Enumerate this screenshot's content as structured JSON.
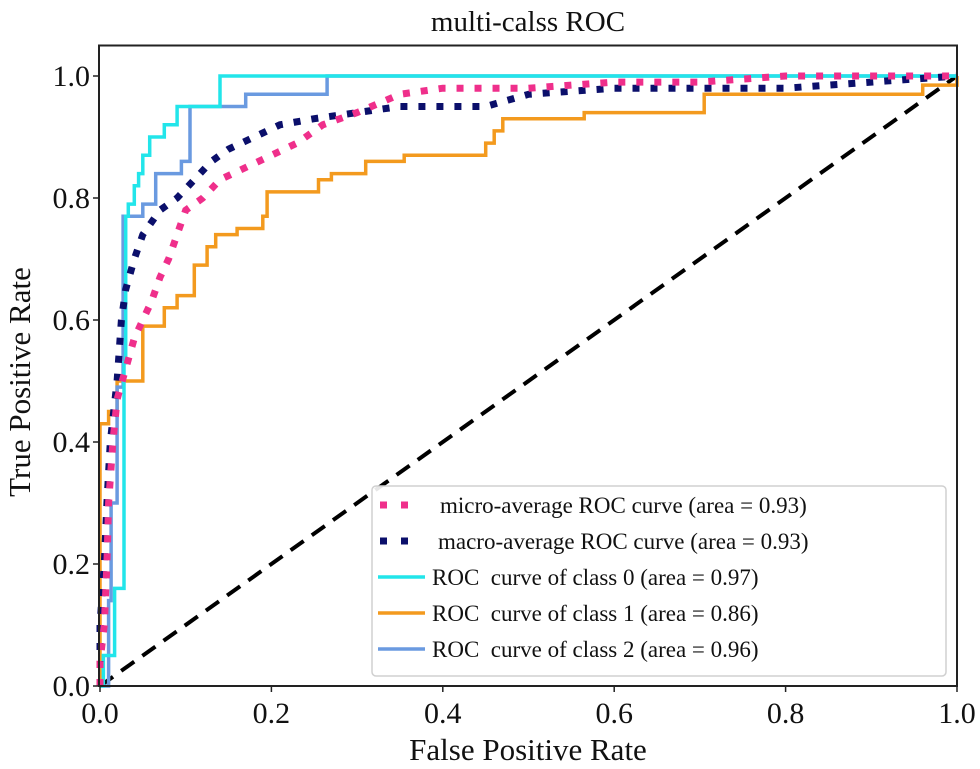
{
  "chart_data": {
    "type": "line",
    "title": "multi-calss ROC",
    "xlabel": "False Positive Rate",
    "ylabel": "True Positive Rate",
    "xlim": [
      0.0,
      1.0
    ],
    "ylim": [
      0.0,
      1.05
    ],
    "xticks": [
      "0.0",
      "0.2",
      "0.4",
      "0.6",
      "0.8",
      "1.0"
    ],
    "yticks": [
      "0.0",
      "0.2",
      "0.4",
      "0.6",
      "0.8",
      "1.0"
    ],
    "grid": false,
    "legend_position": "lower-right",
    "series": [
      {
        "name": "micro-average ROC curve (area = 0.93)",
        "color": "#ef2f8b",
        "style": "dotted",
        "points": [
          [
            0,
            0
          ],
          [
            0,
            0.04
          ],
          [
            0.005,
            0.1
          ],
          [
            0.008,
            0.2
          ],
          [
            0.01,
            0.3
          ],
          [
            0.015,
            0.4
          ],
          [
            0.02,
            0.47
          ],
          [
            0.03,
            0.52
          ],
          [
            0.04,
            0.57
          ],
          [
            0.05,
            0.6
          ],
          [
            0.06,
            0.63
          ],
          [
            0.07,
            0.67
          ],
          [
            0.08,
            0.7
          ],
          [
            0.09,
            0.74
          ],
          [
            0.1,
            0.78
          ],
          [
            0.12,
            0.8
          ],
          [
            0.14,
            0.83
          ],
          [
            0.17,
            0.85
          ],
          [
            0.2,
            0.87
          ],
          [
            0.23,
            0.89
          ],
          [
            0.26,
            0.92
          ],
          [
            0.3,
            0.94
          ],
          [
            0.35,
            0.97
          ],
          [
            0.4,
            0.98
          ],
          [
            0.5,
            0.98
          ],
          [
            0.6,
            0.99
          ],
          [
            0.7,
            0.99
          ],
          [
            0.8,
            1.0
          ],
          [
            0.9,
            1.0
          ],
          [
            1.0,
            1.0
          ]
        ]
      },
      {
        "name": "macro-average ROC curve (area = 0.93)",
        "color": "#0b0f6b",
        "style": "dotted",
        "points": [
          [
            0,
            0
          ],
          [
            0,
            0.1
          ],
          [
            0.005,
            0.2
          ],
          [
            0.008,
            0.3
          ],
          [
            0.012,
            0.4
          ],
          [
            0.02,
            0.5
          ],
          [
            0.025,
            0.6
          ],
          [
            0.03,
            0.65
          ],
          [
            0.04,
            0.7
          ],
          [
            0.05,
            0.74
          ],
          [
            0.07,
            0.78
          ],
          [
            0.09,
            0.8
          ],
          [
            0.11,
            0.83
          ],
          [
            0.13,
            0.86
          ],
          [
            0.15,
            0.88
          ],
          [
            0.18,
            0.9
          ],
          [
            0.21,
            0.92
          ],
          [
            0.25,
            0.93
          ],
          [
            0.3,
            0.94
          ],
          [
            0.35,
            0.95
          ],
          [
            0.4,
            0.95
          ],
          [
            0.45,
            0.95
          ],
          [
            0.5,
            0.97
          ],
          [
            0.6,
            0.98
          ],
          [
            0.7,
            0.98
          ],
          [
            0.8,
            0.98
          ],
          [
            0.9,
            0.99
          ],
          [
            1.0,
            1.0
          ]
        ]
      },
      {
        "name": "ROC  curve of class 0 (area = 0.97)",
        "color": "#22e5ea",
        "style": "solid",
        "points": [
          [
            0,
            0
          ],
          [
            0.004,
            0
          ],
          [
            0.004,
            0.05
          ],
          [
            0.017,
            0.05
          ],
          [
            0.017,
            0.16
          ],
          [
            0.028,
            0.16
          ],
          [
            0.028,
            0.53
          ],
          [
            0.03,
            0.53
          ],
          [
            0.03,
            0.77
          ],
          [
            0.033,
            0.77
          ],
          [
            0.033,
            0.79
          ],
          [
            0.04,
            0.79
          ],
          [
            0.04,
            0.82
          ],
          [
            0.045,
            0.82
          ],
          [
            0.045,
            0.84
          ],
          [
            0.05,
            0.84
          ],
          [
            0.05,
            0.87
          ],
          [
            0.058,
            0.87
          ],
          [
            0.058,
            0.9
          ],
          [
            0.075,
            0.9
          ],
          [
            0.075,
            0.92
          ],
          [
            0.09,
            0.92
          ],
          [
            0.09,
            0.95
          ],
          [
            0.14,
            0.95
          ],
          [
            0.14,
            1.0
          ],
          [
            1.0,
            1.0
          ]
        ]
      },
      {
        "name": "ROC  curve of class 1 (area = 0.86)",
        "color": "#f39a1e",
        "style": "solid",
        "points": [
          [
            0,
            0
          ],
          [
            0,
            0.43
          ],
          [
            0.01,
            0.43
          ],
          [
            0.01,
            0.45
          ],
          [
            0.02,
            0.45
          ],
          [
            0.02,
            0.5
          ],
          [
            0.05,
            0.5
          ],
          [
            0.05,
            0.59
          ],
          [
            0.075,
            0.59
          ],
          [
            0.075,
            0.62
          ],
          [
            0.09,
            0.62
          ],
          [
            0.09,
            0.64
          ],
          [
            0.11,
            0.64
          ],
          [
            0.11,
            0.69
          ],
          [
            0.125,
            0.69
          ],
          [
            0.125,
            0.72
          ],
          [
            0.135,
            0.72
          ],
          [
            0.135,
            0.74
          ],
          [
            0.16,
            0.74
          ],
          [
            0.16,
            0.75
          ],
          [
            0.19,
            0.75
          ],
          [
            0.19,
            0.77
          ],
          [
            0.195,
            0.77
          ],
          [
            0.195,
            0.81
          ],
          [
            0.255,
            0.81
          ],
          [
            0.255,
            0.83
          ],
          [
            0.27,
            0.83
          ],
          [
            0.27,
            0.84
          ],
          [
            0.31,
            0.84
          ],
          [
            0.31,
            0.86
          ],
          [
            0.355,
            0.86
          ],
          [
            0.355,
            0.87
          ],
          [
            0.45,
            0.87
          ],
          [
            0.45,
            0.89
          ],
          [
            0.46,
            0.89
          ],
          [
            0.46,
            0.91
          ],
          [
            0.47,
            0.91
          ],
          [
            0.47,
            0.93
          ],
          [
            0.565,
            0.93
          ],
          [
            0.565,
            0.94
          ],
          [
            0.705,
            0.94
          ],
          [
            0.705,
            0.97
          ],
          [
            0.96,
            0.97
          ],
          [
            0.96,
            0.985
          ],
          [
            1.0,
            0.985
          ],
          [
            1.0,
            1.0
          ]
        ]
      },
      {
        "name": "ROC  curve of class 2 (area = 0.96)",
        "color": "#6a9ae0",
        "style": "solid",
        "points": [
          [
            0,
            0
          ],
          [
            0.01,
            0
          ],
          [
            0.01,
            0.14
          ],
          [
            0.013,
            0.14
          ],
          [
            0.013,
            0.3
          ],
          [
            0.02,
            0.3
          ],
          [
            0.02,
            0.49
          ],
          [
            0.027,
            0.49
          ],
          [
            0.027,
            0.77
          ],
          [
            0.05,
            0.77
          ],
          [
            0.05,
            0.79
          ],
          [
            0.065,
            0.79
          ],
          [
            0.065,
            0.84
          ],
          [
            0.095,
            0.84
          ],
          [
            0.095,
            0.86
          ],
          [
            0.105,
            0.86
          ],
          [
            0.105,
            0.95
          ],
          [
            0.17,
            0.95
          ],
          [
            0.17,
            0.97
          ],
          [
            0.265,
            0.97
          ],
          [
            0.265,
            1.0
          ],
          [
            1.0,
            1.0
          ]
        ]
      },
      {
        "name": "chance",
        "color": "#000000",
        "style": "dashed",
        "points": [
          [
            0,
            0
          ],
          [
            1,
            1
          ]
        ]
      }
    ]
  }
}
